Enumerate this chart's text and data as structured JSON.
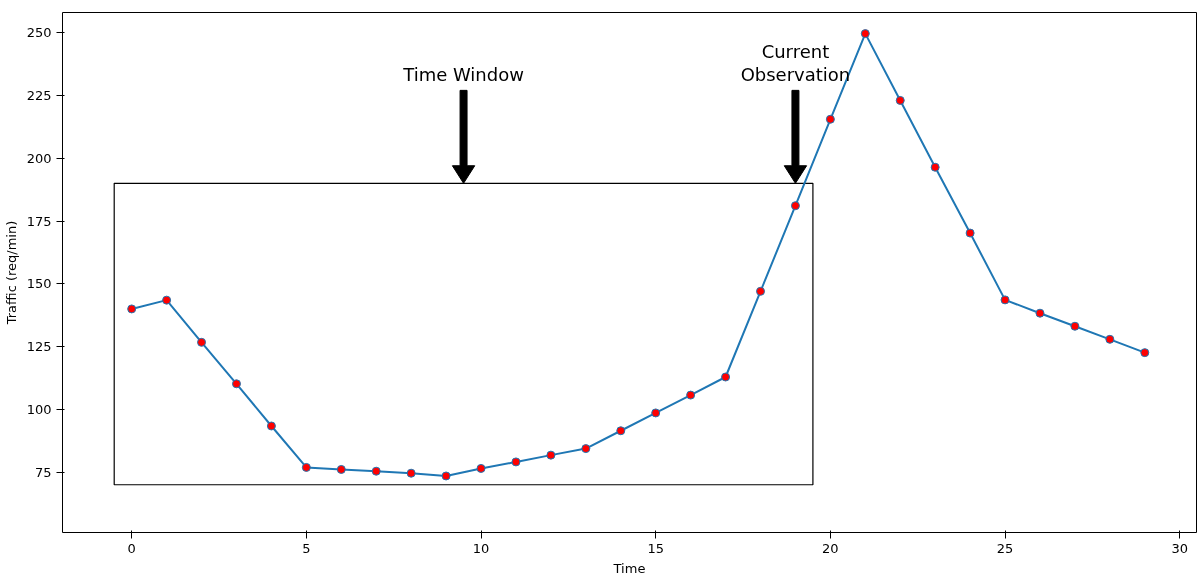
{
  "chart_data": {
    "type": "line",
    "xlabel": "Time",
    "ylabel": "Traffic (req/min)",
    "x": [
      0,
      1,
      2,
      3,
      4,
      5,
      6,
      7,
      8,
      9,
      10,
      11,
      12,
      13,
      14,
      15,
      16,
      17,
      18,
      19,
      20,
      21,
      22,
      23,
      24,
      25,
      26,
      27,
      28,
      29
    ],
    "series": [
      {
        "color": "#1f77b4",
        "values": [
          140,
          143.5,
          126.7,
          110.2,
          93.4,
          76.9,
          76.1,
          75.4,
          74.6,
          73.5,
          76.5,
          79.1,
          81.8,
          84.4,
          91.5,
          98.6,
          105.7,
          112.9,
          147,
          181.1,
          215.5,
          249.6,
          223,
          196.4,
          170.2,
          143.6,
          138.3,
          133.1,
          127.9,
          122.6
        ],
        "colors": [
          "#ff0000",
          "#ff0000",
          "#ff0000",
          "#ff0000",
          "#ff0000",
          "#ff0000",
          "#ff0000",
          "#ff0000",
          "#ff0000",
          "#ff0000",
          "#ff0000",
          "#ff0000",
          "#ff0000",
          "#ff0000",
          "#ff0000",
          "#ff0000",
          "#ff0000",
          "#ff0000",
          "#ff0000",
          "#ff0000",
          "#ff0000",
          "#ff0000",
          "#ff0000",
          "#ff0000",
          "#ff0000",
          "#ff0000",
          "#ff0000",
          "#ff0000",
          "#ff0000",
          "#ff0000"
        ]
      }
    ],
    "marker": "circle",
    "line_style": "solid",
    "grid": false,
    "xlim": [
      -1.98,
      30.48
    ],
    "ylim": [
      51,
      258
    ],
    "xticks": [
      0,
      5,
      10,
      15,
      20,
      25,
      30
    ],
    "yticks": [
      75,
      100,
      125,
      150,
      175,
      200,
      225,
      250
    ],
    "annotations": [
      "Time Window",
      "Current\nObservation"
    ]
  }
}
